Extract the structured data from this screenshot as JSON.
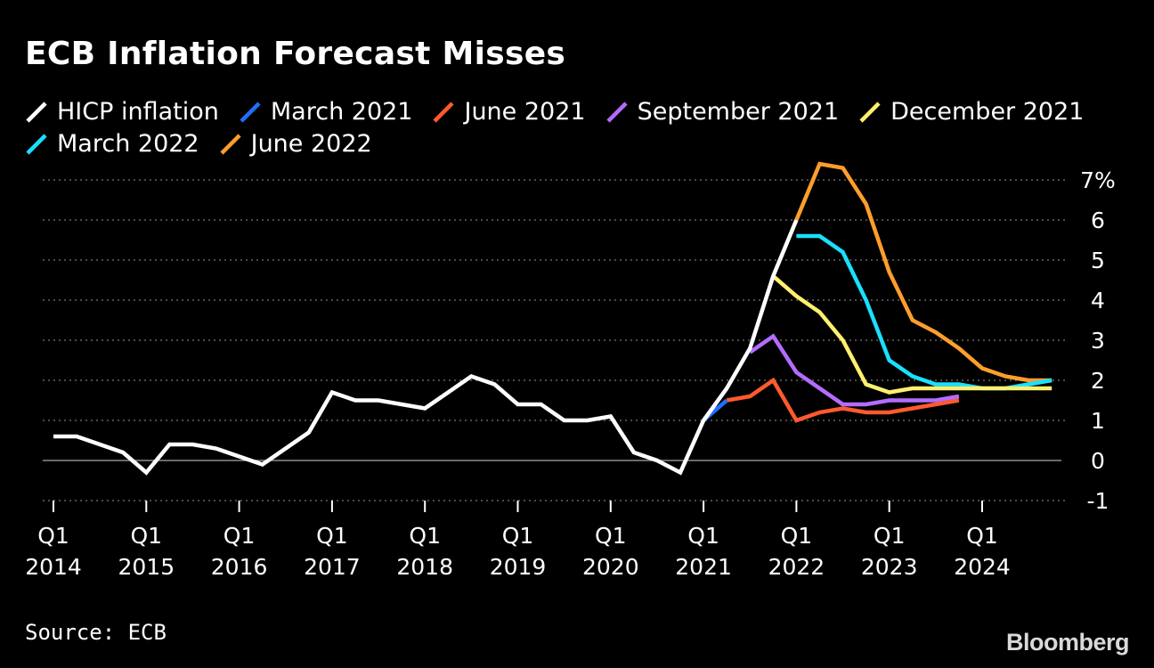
{
  "title": "ECB Inflation Forecast Misses",
  "source": "Source: ECB",
  "logo": "Bloomberg",
  "chart_data": {
    "type": "line",
    "title": "ECB Inflation Forecast Misses",
    "ylim": [
      -1,
      7
    ],
    "y_ticks": [
      "7%",
      "6",
      "5",
      "4",
      "3",
      "2",
      "1",
      "0",
      "-1"
    ],
    "x_tick_labels": [
      [
        "Q1",
        "2014"
      ],
      [
        "Q1",
        "2015"
      ],
      [
        "Q1",
        "2016"
      ],
      [
        "Q1",
        "2017"
      ],
      [
        "Q1",
        "2018"
      ],
      [
        "Q1",
        "2019"
      ],
      [
        "Q1",
        "2020"
      ],
      [
        "Q1",
        "2021"
      ],
      [
        "Q1",
        "2022"
      ],
      [
        "Q1",
        "2023"
      ],
      [
        "Q1",
        "2024"
      ]
    ],
    "x_unit": "quarter (year fraction; Q1 2014 = 2014.0)",
    "grid": true,
    "legend_position": "top-left",
    "series": [
      {
        "name": "HICP inflation",
        "color": "#ffffff",
        "points": [
          [
            2014.0,
            0.6
          ],
          [
            2014.25,
            0.6
          ],
          [
            2014.5,
            0.4
          ],
          [
            2014.75,
            0.2
          ],
          [
            2015.0,
            -0.3
          ],
          [
            2015.25,
            0.4
          ],
          [
            2015.5,
            0.4
          ],
          [
            2015.75,
            0.3
          ],
          [
            2016.0,
            0.1
          ],
          [
            2016.25,
            -0.1
          ],
          [
            2016.5,
            0.3
          ],
          [
            2016.75,
            0.7
          ],
          [
            2017.0,
            1.7
          ],
          [
            2017.25,
            1.5
          ],
          [
            2017.5,
            1.5
          ],
          [
            2017.75,
            1.4
          ],
          [
            2018.0,
            1.3
          ],
          [
            2018.25,
            1.7
          ],
          [
            2018.5,
            2.1
          ],
          [
            2018.75,
            1.9
          ],
          [
            2019.0,
            1.4
          ],
          [
            2019.25,
            1.4
          ],
          [
            2019.5,
            1.0
          ],
          [
            2019.75,
            1.0
          ],
          [
            2020.0,
            1.1
          ],
          [
            2020.25,
            0.2
          ],
          [
            2020.5,
            0.0
          ],
          [
            2020.75,
            -0.3
          ],
          [
            2021.0,
            1.0
          ],
          [
            2021.25,
            1.8
          ],
          [
            2021.5,
            2.8
          ],
          [
            2021.75,
            4.6
          ],
          [
            2022.0,
            6.0
          ]
        ]
      },
      {
        "name": "March 2021",
        "color": "#1f6fff",
        "points": [
          [
            2021.0,
            1.0
          ],
          [
            2021.25,
            1.5
          ]
        ]
      },
      {
        "name": "June 2021",
        "color": "#ff5a2e",
        "points": [
          [
            2021.25,
            1.5
          ],
          [
            2021.5,
            1.6
          ],
          [
            2021.75,
            2.0
          ],
          [
            2022.0,
            1.0
          ],
          [
            2022.25,
            1.2
          ],
          [
            2022.5,
            1.3
          ],
          [
            2022.75,
            1.2
          ],
          [
            2023.0,
            1.2
          ],
          [
            2023.25,
            1.3
          ],
          [
            2023.5,
            1.4
          ],
          [
            2023.75,
            1.5
          ]
        ]
      },
      {
        "name": "September 2021",
        "color": "#b46cff",
        "points": [
          [
            2021.5,
            2.7
          ],
          [
            2021.75,
            3.1
          ],
          [
            2022.0,
            2.2
          ],
          [
            2022.25,
            1.8
          ],
          [
            2022.5,
            1.4
          ],
          [
            2022.75,
            1.4
          ],
          [
            2023.0,
            1.5
          ],
          [
            2023.25,
            1.5
          ],
          [
            2023.5,
            1.5
          ],
          [
            2023.75,
            1.6
          ]
        ]
      },
      {
        "name": "December 2021",
        "color": "#ffef70",
        "points": [
          [
            2021.75,
            4.6
          ],
          [
            2022.0,
            4.1
          ],
          [
            2022.25,
            3.7
          ],
          [
            2022.5,
            3.0
          ],
          [
            2022.75,
            1.9
          ],
          [
            2023.0,
            1.7
          ],
          [
            2023.25,
            1.8
          ],
          [
            2023.5,
            1.8
          ],
          [
            2023.75,
            1.8
          ],
          [
            2024.0,
            1.8
          ],
          [
            2024.25,
            1.8
          ],
          [
            2024.5,
            1.8
          ],
          [
            2024.75,
            1.8
          ]
        ]
      },
      {
        "name": "March 2022",
        "color": "#19e0ff",
        "points": [
          [
            2022.0,
            5.6
          ],
          [
            2022.25,
            5.6
          ],
          [
            2022.5,
            5.2
          ],
          [
            2022.75,
            4.0
          ],
          [
            2023.0,
            2.5
          ],
          [
            2023.25,
            2.1
          ],
          [
            2023.5,
            1.9
          ],
          [
            2023.75,
            1.9
          ],
          [
            2024.0,
            1.8
          ],
          [
            2024.25,
            1.8
          ],
          [
            2024.5,
            1.9
          ],
          [
            2024.75,
            2.0
          ]
        ]
      },
      {
        "name": "June 2022",
        "color": "#ff9e2c",
        "points": [
          [
            2022.0,
            6.0
          ],
          [
            2022.25,
            7.4
          ],
          [
            2022.5,
            7.3
          ],
          [
            2022.75,
            6.4
          ],
          [
            2023.0,
            4.7
          ],
          [
            2023.25,
            3.5
          ],
          [
            2023.5,
            3.2
          ],
          [
            2023.75,
            2.8
          ],
          [
            2024.0,
            2.3
          ],
          [
            2024.25,
            2.1
          ],
          [
            2024.5,
            2.0
          ],
          [
            2024.75,
            2.0
          ]
        ]
      }
    ]
  }
}
